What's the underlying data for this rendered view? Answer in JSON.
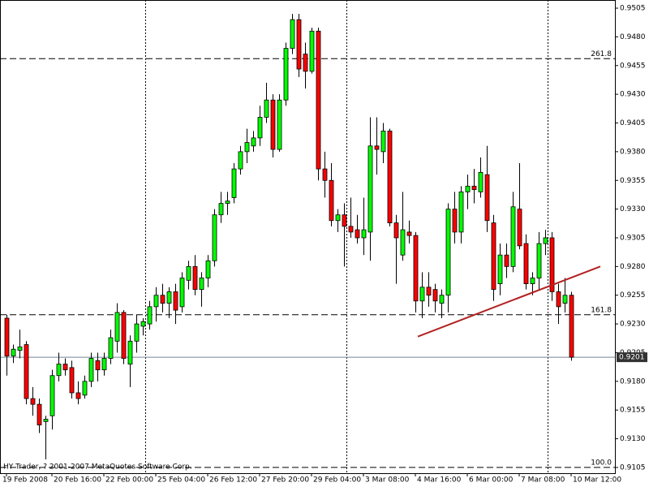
{
  "chart_data": {
    "type": "candlestick",
    "footer": "HY Trader, ? 2001-2007 MetaQuotes Software Corp.",
    "categories": [
      "19 Feb 2008",
      null,
      null,
      null,
      null,
      null,
      null,
      "20 Feb 16:00",
      null,
      null,
      null,
      null,
      null,
      null,
      null,
      "22 Feb 00:00",
      null,
      null,
      null,
      null,
      null,
      null,
      null,
      "25 Feb 04:00",
      null,
      null,
      null,
      null,
      null,
      null,
      null,
      "26 Feb 12:00",
      null,
      null,
      null,
      null,
      null,
      null,
      null,
      "27 Feb 20:00",
      null,
      null,
      null,
      null,
      null,
      null,
      null,
      "29 Feb 04:00",
      null,
      null,
      null,
      null,
      null,
      null,
      null,
      "3 Mar 08:00",
      null,
      null,
      null,
      null,
      null,
      null,
      null,
      "4 Mar 16:00",
      null,
      null,
      null,
      null,
      null,
      null,
      null,
      "6 Mar 00:00",
      null,
      null,
      null,
      null,
      null,
      null,
      null,
      "7 Mar 08:00",
      null,
      null,
      null,
      null,
      null,
      null,
      null,
      "10 Mar 12:00"
    ],
    "series": [
      {
        "up_color": "#00ff00",
        "down_color": "#ff0000",
        "open": [
          0.9235,
          0.9202,
          0.9207,
          0.9212,
          0.9165,
          0.916,
          0.9145,
          0.915,
          0.9185,
          0.9195,
          0.9192,
          0.917,
          0.9168,
          0.918,
          0.9198,
          0.919,
          0.92,
          0.9215,
          0.924,
          0.9195,
          0.9215,
          0.9228,
          0.923,
          0.9245,
          0.9255,
          0.9248,
          0.9258,
          0.9245,
          0.9268,
          0.928,
          0.926,
          0.927,
          0.9285,
          0.9325,
          0.9335,
          0.934,
          0.9365,
          0.938,
          0.9385,
          0.9392,
          0.941,
          0.9425,
          0.9382,
          0.9425,
          0.947,
          0.9495,
          0.9465,
          0.945,
          0.9485,
          0.9365,
          0.9355,
          0.932,
          0.9325,
          0.9315,
          0.9312,
          0.9305,
          0.931,
          0.9385,
          0.938,
          0.9398,
          0.9318,
          0.929,
          0.931,
          0.9307,
          0.925,
          0.9262,
          0.926,
          0.9248,
          0.9255,
          0.933,
          0.931,
          0.9345,
          0.935,
          0.9345,
          0.936,
          0.9318,
          0.9265,
          0.929,
          0.928,
          0.933,
          0.93,
          0.9265,
          0.927,
          0.93,
          0.9305,
          0.9258,
          0.9248,
          0.9255
        ],
        "high": [
          0.9238,
          0.9212,
          0.9225,
          0.9215,
          0.9175,
          0.9165,
          0.915,
          0.919,
          0.9205,
          0.92,
          0.9198,
          0.918,
          0.9185,
          0.9205,
          0.9205,
          0.9205,
          0.9225,
          0.9248,
          0.9242,
          0.922,
          0.9238,
          0.9235,
          0.925,
          0.9262,
          0.9265,
          0.9262,
          0.9265,
          0.9275,
          0.9285,
          0.929,
          0.9275,
          0.929,
          0.933,
          0.9345,
          0.9345,
          0.937,
          0.9385,
          0.94,
          0.9398,
          0.942,
          0.944,
          0.943,
          0.943,
          0.9475,
          0.95,
          0.95,
          0.9475,
          0.9488,
          0.9488,
          0.938,
          0.937,
          0.933,
          0.9335,
          0.934,
          0.9325,
          0.934,
          0.941,
          0.941,
          0.9405,
          0.94,
          0.9325,
          0.9345,
          0.932,
          0.931,
          0.9275,
          0.9275,
          0.9265,
          0.926,
          0.9335,
          0.9345,
          0.935,
          0.936,
          0.9365,
          0.9375,
          0.9385,
          0.9325,
          0.93,
          0.93,
          0.9345,
          0.937,
          0.9308,
          0.9275,
          0.931,
          0.9312,
          0.931,
          0.9265,
          0.927,
          0.9258
        ],
        "low": [
          0.9185,
          0.9196,
          0.92,
          0.916,
          0.915,
          0.9135,
          0.9112,
          0.9138,
          0.918,
          0.9185,
          0.9165,
          0.916,
          0.9165,
          0.9175,
          0.918,
          0.9185,
          0.9195,
          0.9205,
          0.9195,
          0.9175,
          0.9205,
          0.922,
          0.9225,
          0.9232,
          0.924,
          0.9235,
          0.923,
          0.924,
          0.926,
          0.9255,
          0.9245,
          0.9262,
          0.928,
          0.9318,
          0.9325,
          0.9335,
          0.936,
          0.937,
          0.938,
          0.9385,
          0.9405,
          0.9375,
          0.938,
          0.942,
          0.9465,
          0.9445,
          0.9435,
          0.9448,
          0.9355,
          0.934,
          0.9315,
          0.931,
          0.928,
          0.9305,
          0.93,
          0.929,
          0.9285,
          0.936,
          0.937,
          0.9315,
          0.9265,
          0.9285,
          0.93,
          0.924,
          0.9235,
          0.9245,
          0.924,
          0.9235,
          0.924,
          0.93,
          0.93,
          0.933,
          0.9335,
          0.934,
          0.931,
          0.925,
          0.9255,
          0.927,
          0.9275,
          0.9295,
          0.926,
          0.9255,
          0.926,
          0.929,
          0.925,
          0.923,
          0.924,
          0.9198
        ],
        "close": [
          0.9202,
          0.9208,
          0.921,
          0.9165,
          0.916,
          0.9142,
          0.9147,
          0.9185,
          0.9195,
          0.919,
          0.917,
          0.9165,
          0.918,
          0.92,
          0.919,
          0.92,
          0.9218,
          0.924,
          0.92,
          0.9215,
          0.923,
          0.9232,
          0.9245,
          0.9255,
          0.9248,
          0.9258,
          0.9242,
          0.927,
          0.928,
          0.926,
          0.927,
          0.9285,
          0.9325,
          0.9335,
          0.9337,
          0.9365,
          0.938,
          0.9388,
          0.9392,
          0.941,
          0.9425,
          0.9382,
          0.9425,
          0.947,
          0.9495,
          0.9452,
          0.945,
          0.9485,
          0.9365,
          0.9355,
          0.932,
          0.9325,
          0.9315,
          0.931,
          0.9305,
          0.9312,
          0.9385,
          0.9382,
          0.9398,
          0.9318,
          0.9305,
          0.9312,
          0.9307,
          0.925,
          0.9262,
          0.9255,
          0.925,
          0.9255,
          0.933,
          0.931,
          0.9345,
          0.935,
          0.9347,
          0.9362,
          0.932,
          0.926,
          0.929,
          0.928,
          0.9332,
          0.9298,
          0.9265,
          0.927,
          0.93,
          0.9305,
          0.9258,
          0.9245,
          0.9255,
          0.9201
        ]
      }
    ],
    "ylim": [
      0.91,
      0.95121
    ],
    "yticks": [
      0.9505,
      {
        "value": 0.948,
        "label": "0.9480"
      },
      0.9455,
      {
        "value": 0.943,
        "label": "0.9430"
      },
      0.9405,
      {
        "value": 0.938,
        "label": "0.9380"
      },
      0.9355,
      {
        "value": 0.933,
        "label": "0.9330"
      },
      0.9305,
      {
        "value": 0.928,
        "label": "0.9280"
      },
      0.9255,
      {
        "value": 0.923,
        "label": "0.9230"
      },
      0.9205,
      {
        "value": 0.918,
        "label": "0.9180"
      },
      0.9155,
      {
        "value": 0.913,
        "label": "0.9130"
      },
      0.9105
    ],
    "last_price": 0.9201,
    "last_price_color": "#778899",
    "fib_levels": [
      {
        "label": "261.8",
        "price": 0.9461
      },
      {
        "label": "161.8",
        "price": 0.9238
      },
      {
        "label": "100.0",
        "price": 0.9105
      }
    ],
    "trendline": {
      "start": 0.9219,
      "end": 0.928,
      "color": "#b22222"
    }
  }
}
